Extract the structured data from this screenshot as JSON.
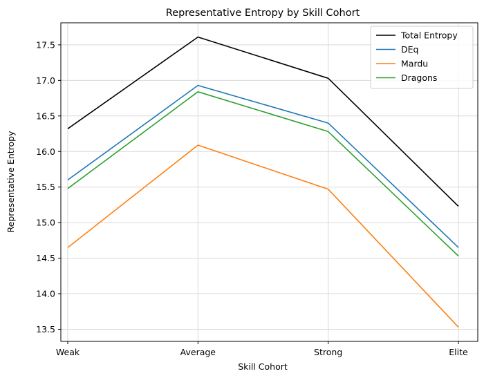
{
  "chart_data": {
    "type": "line",
    "title": "Representative Entropy by Skill Cohort",
    "xlabel": "Skill Cohort",
    "ylabel": "Representative Entropy",
    "categories": [
      "Weak",
      "Average",
      "Strong",
      "Elite"
    ],
    "ylim": [
      13.33,
      17.81
    ],
    "yticks": [
      "13.5",
      "14.0",
      "14.5",
      "15.0",
      "15.5",
      "16.0",
      "16.5",
      "17.0",
      "17.5"
    ],
    "grid": true,
    "legend_position": "top-right",
    "series": [
      {
        "name": "Total Entropy",
        "color": "#000000",
        "values": [
          16.32,
          17.61,
          17.03,
          15.23
        ]
      },
      {
        "name": "DEq",
        "color": "#1f77b4",
        "values": [
          15.6,
          16.93,
          16.4,
          14.65
        ]
      },
      {
        "name": "Mardu",
        "color": "#ff7f0e",
        "values": [
          14.65,
          16.09,
          15.47,
          13.53
        ]
      },
      {
        "name": "Dragons",
        "color": "#2ca02c",
        "values": [
          15.48,
          16.84,
          16.28,
          14.53
        ]
      }
    ]
  }
}
